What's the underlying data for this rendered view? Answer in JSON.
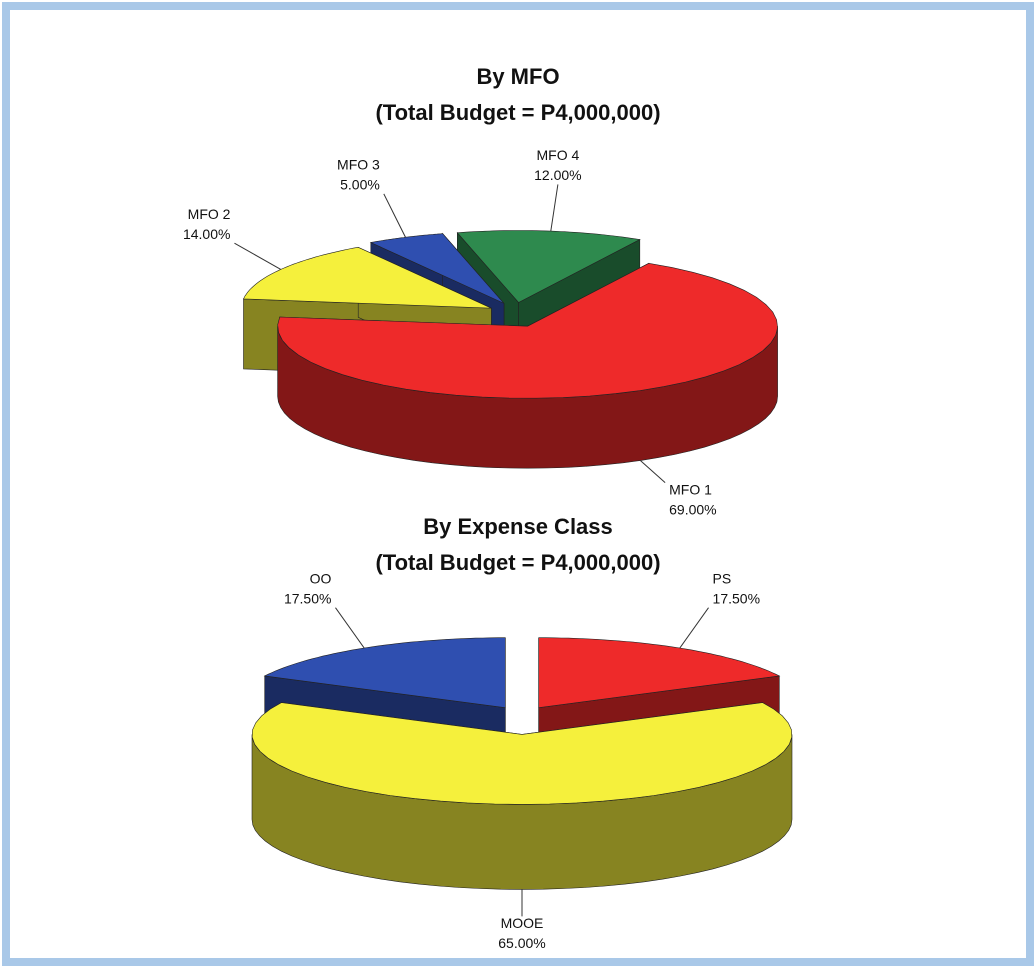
{
  "chart_data": [
    {
      "type": "pie",
      "title": "By MFO",
      "subtitle": "(Total Budget = P4,000,000)",
      "categories": [
        "MFO 1",
        "MFO 2",
        "MFO 3",
        "MFO 4"
      ],
      "values": [
        69,
        14,
        5,
        12
      ],
      "value_labels": [
        "69.00%",
        "14.00%",
        "5.00%",
        "12.00%"
      ],
      "colors": [
        "#ee2a2a",
        "#f5f03c",
        "#2f4fb0",
        "#2e8a4e"
      ]
    },
    {
      "type": "pie",
      "title": "By Expense Class",
      "subtitle": "(Total Budget = P4,000,000)",
      "categories": [
        "PS",
        "MOOE",
        "OO"
      ],
      "values": [
        17.5,
        65,
        17.5
      ],
      "value_labels": [
        "17.50%",
        "65.00%",
        "17.50%"
      ],
      "colors": [
        "#ee2a2a",
        "#f5f03c",
        "#2f4fb0"
      ]
    }
  ]
}
